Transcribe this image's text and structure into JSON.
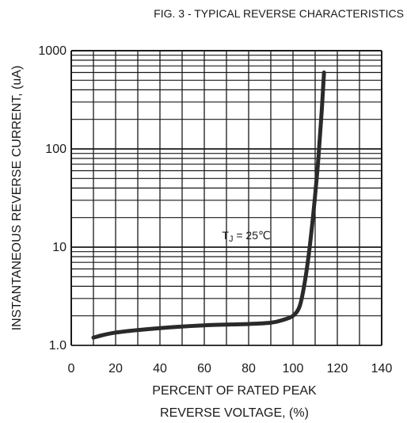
{
  "chart_data": {
    "type": "line",
    "title": "FIG. 3 - TYPICAL REVERSE CHARACTERISTICS",
    "xlabel_lines": [
      "PERCENT OF RATED PEAK",
      "REVERSE VOLTAGE, (%)"
    ],
    "ylabel": "INSTANTANEOUS REVERSE CURRENT, (uA)",
    "xscale": "linear",
    "yscale": "log",
    "xlim": [
      0,
      140
    ],
    "ylim": [
      1,
      1000
    ],
    "x_ticks": [
      0,
      20,
      40,
      60,
      80,
      100,
      120,
      140
    ],
    "x_tick_labels": [
      "0",
      "20",
      "40",
      "60",
      "80",
      "100",
      "120",
      "140"
    ],
    "y_ticks": [
      1,
      10,
      100,
      1000
    ],
    "y_tick_labels": [
      "1.0",
      "10",
      "100",
      "1000"
    ],
    "grid": true,
    "annotation": {
      "parts": [
        {
          "text": "T",
          "sub": false
        },
        {
          "text": "J",
          "sub": true
        },
        {
          "text": " = 25",
          "sub": false
        },
        {
          "text": "℃",
          "sub": false
        }
      ],
      "x": 68,
      "y": 12
    },
    "series": [
      {
        "x": [
          10,
          20,
          40,
          60,
          80,
          90,
          95,
          100,
          103,
          105,
          107,
          109,
          111,
          112,
          113,
          114
        ],
        "y": [
          1.2,
          1.35,
          1.5,
          1.6,
          1.65,
          1.7,
          1.8,
          2.0,
          2.5,
          4,
          8,
          20,
          60,
          120,
          250,
          600
        ]
      }
    ]
  }
}
